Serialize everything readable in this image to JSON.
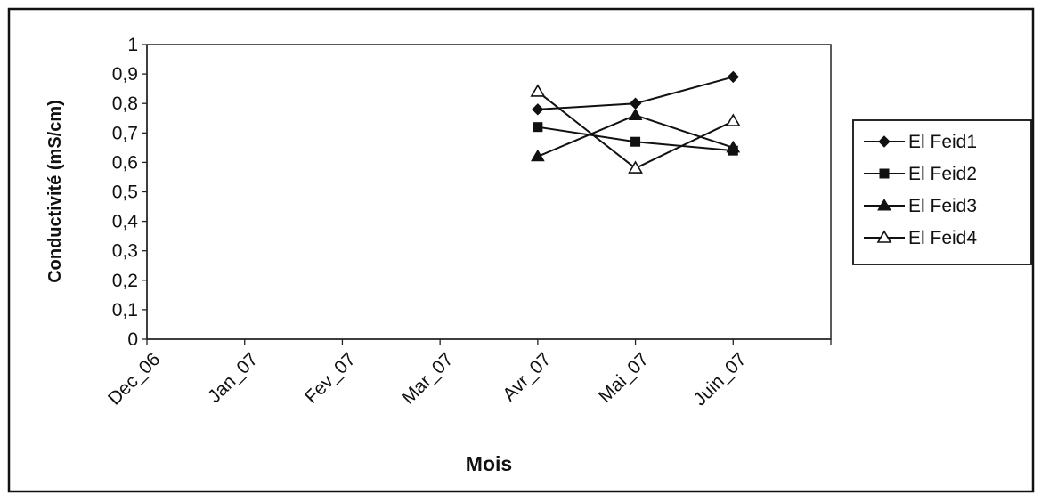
{
  "chart_data": {
    "type": "line",
    "title": "",
    "xlabel": "Mois",
    "ylabel": "Conductivité (mS/cm)",
    "categories": [
      "Dec_06",
      "Jan_07",
      "Fev_07",
      "Mar_07",
      "Avr_07",
      "Mai_07",
      "Juin_07"
    ],
    "ylim": [
      0,
      1
    ],
    "yticks": [
      "0",
      "0,1",
      "0,2",
      "0,3",
      "0,4",
      "0,5",
      "0,6",
      "0,7",
      "0,8",
      "0,9",
      "1"
    ],
    "grid": false,
    "legend_position": "right",
    "series": [
      {
        "name": "El Feid1",
        "marker": "diamond-filled",
        "values": [
          null,
          null,
          null,
          0.78,
          0.8,
          0.89,
          null
        ]
      },
      {
        "name": "El Feid2",
        "marker": "square-filled",
        "values": [
          null,
          null,
          null,
          0.72,
          0.67,
          0.64,
          null
        ]
      },
      {
        "name": "El Feid3",
        "marker": "triangle-filled",
        "values": [
          null,
          null,
          null,
          0.62,
          0.76,
          0.65,
          null
        ]
      },
      {
        "name": "El Feid4",
        "marker": "triangle-open",
        "values": [
          null,
          null,
          null,
          0.84,
          0.58,
          0.74,
          null
        ]
      }
    ]
  }
}
